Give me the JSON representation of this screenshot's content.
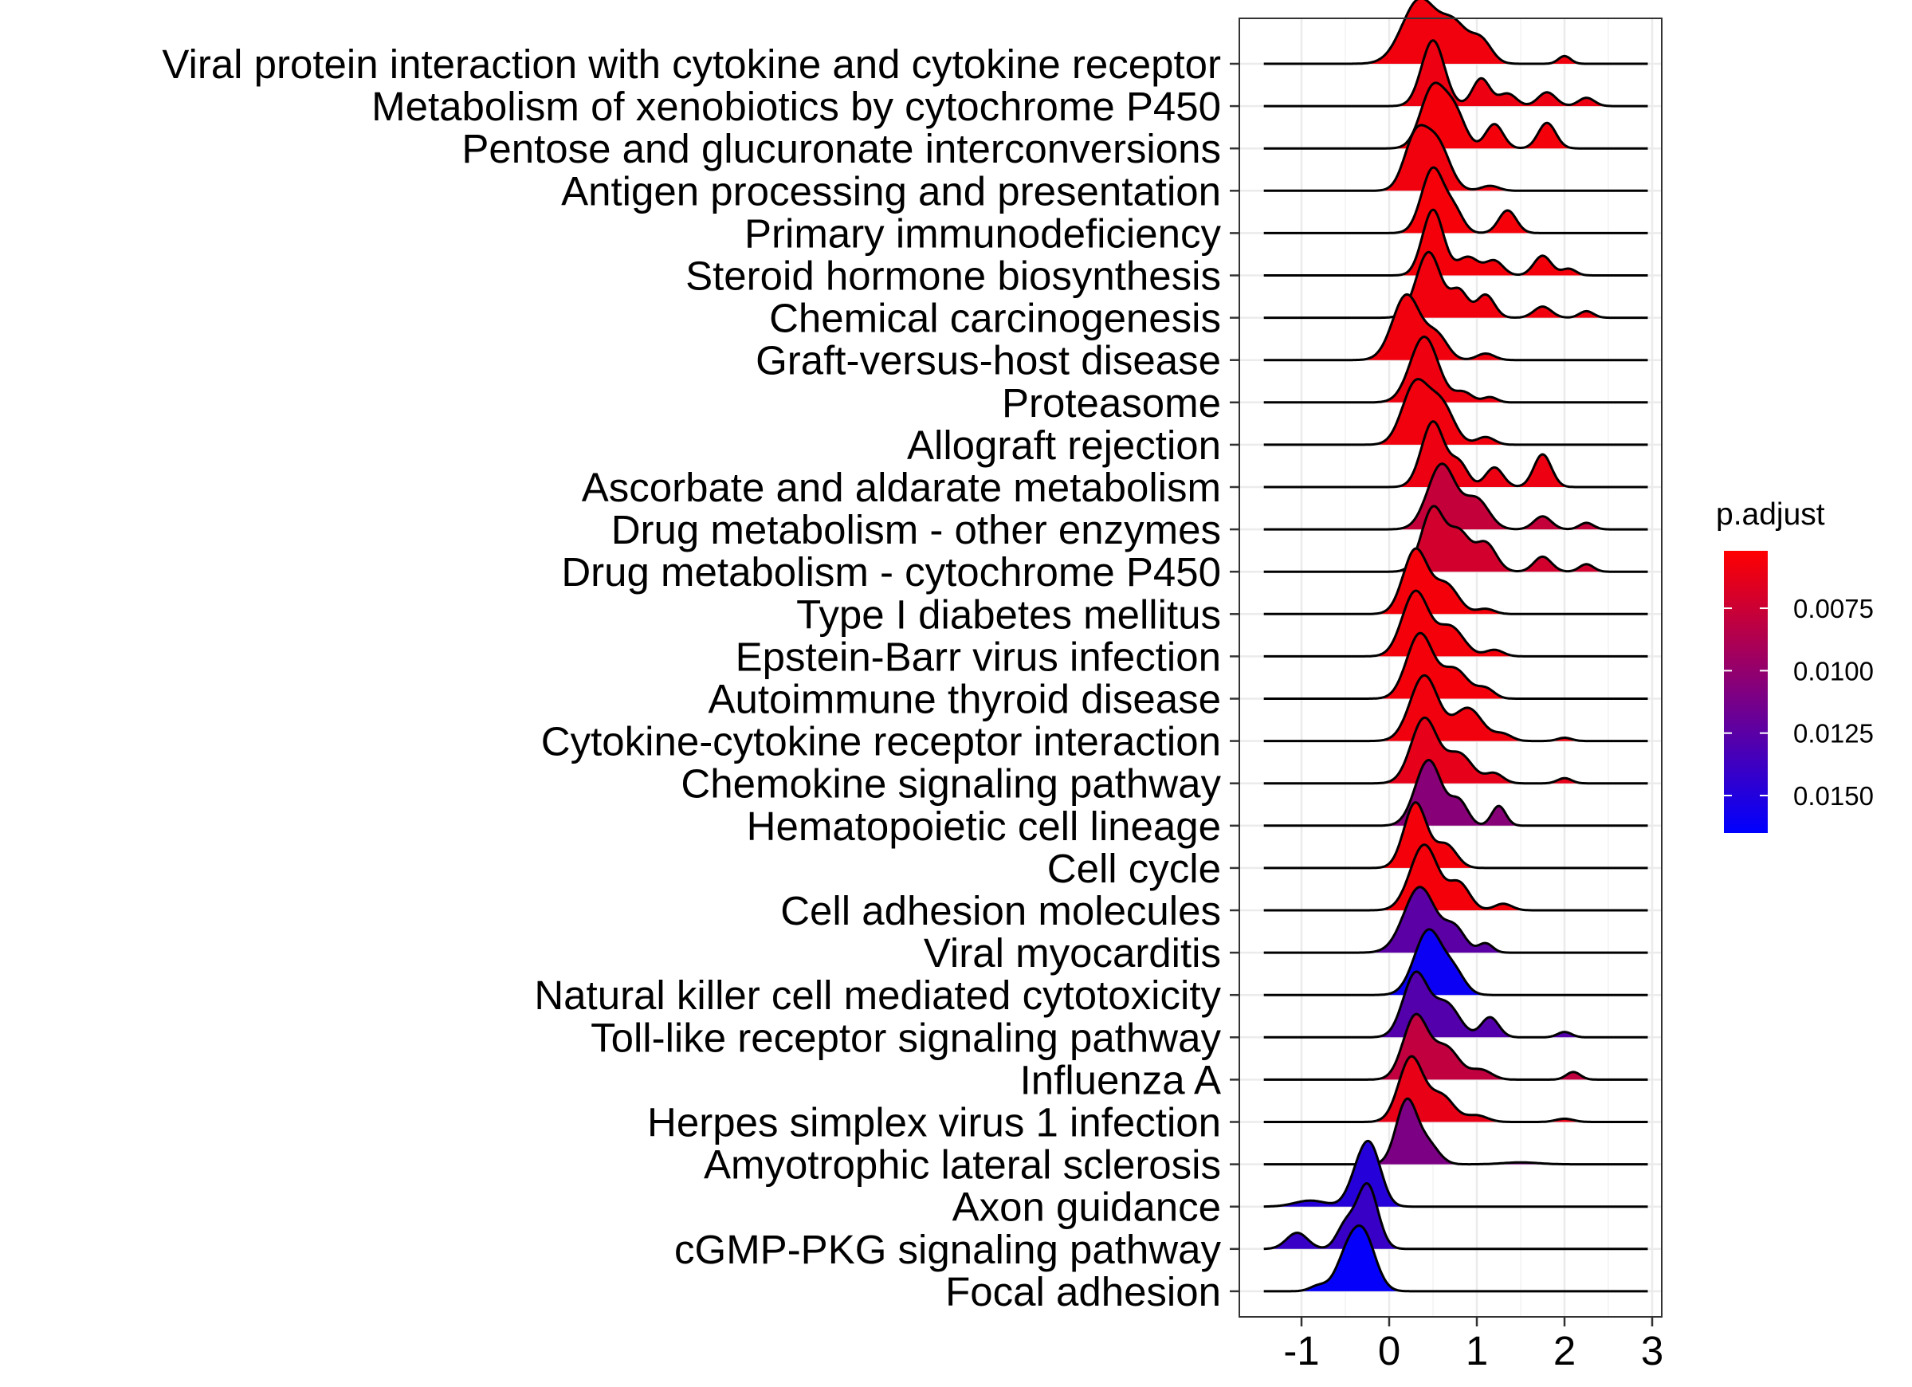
{
  "chart_data": {
    "type": "ridgeline",
    "title": "",
    "xlabel": "",
    "ylabel": "",
    "xlim": [
      -1.5,
      3.0
    ],
    "x_ticks": [
      "-1",
      "0",
      "1",
      "2",
      "3"
    ],
    "x_tick_values": [
      -1,
      0,
      1,
      2,
      3
    ],
    "grid": true,
    "legend": {
      "title": "p.adjust",
      "placement": "right",
      "range": [
        0.0052,
        0.0165
      ],
      "ticks": [
        "0.0075",
        "0.0100",
        "0.0125",
        "0.0150"
      ],
      "tick_values": [
        0.0075,
        0.01,
        0.0125,
        0.015
      ],
      "low_color": "#ff0000",
      "high_color": "#0000ff"
    },
    "series": [
      {
        "name": "Viral protein interaction with cytokine and cytokine receptor",
        "p_adjust": 0.0058,
        "peaks": [
          [
            0.35,
            0.2,
            1.0
          ],
          [
            0.75,
            0.15,
            0.55
          ],
          [
            1.05,
            0.12,
            0.35
          ],
          [
            2.0,
            0.07,
            0.12
          ]
        ]
      },
      {
        "name": "Metabolism of xenobiotics by cytochrome P450",
        "p_adjust": 0.006,
        "peaks": [
          [
            0.5,
            0.13,
            0.95
          ],
          [
            1.05,
            0.1,
            0.4
          ],
          [
            1.35,
            0.1,
            0.18
          ],
          [
            1.8,
            0.1,
            0.2
          ],
          [
            2.25,
            0.09,
            0.12
          ]
        ]
      },
      {
        "name": "Pentose and glucuronate interconversions",
        "p_adjust": 0.0057,
        "peaks": [
          [
            0.5,
            0.14,
            1.0
          ],
          [
            0.75,
            0.12,
            0.55
          ],
          [
            1.2,
            0.1,
            0.4
          ],
          [
            1.8,
            0.1,
            0.42
          ]
        ]
      },
      {
        "name": "Antigen processing and presentation",
        "p_adjust": 0.0058,
        "peaks": [
          [
            0.3,
            0.13,
            0.85
          ],
          [
            0.55,
            0.14,
            0.75
          ],
          [
            1.15,
            0.1,
            0.08
          ]
        ]
      },
      {
        "name": "Primary immunodeficiency",
        "p_adjust": 0.0056,
        "peaks": [
          [
            0.5,
            0.13,
            1.0
          ],
          [
            0.75,
            0.1,
            0.3
          ],
          [
            1.35,
            0.1,
            0.35
          ]
        ]
      },
      {
        "name": "Steroid hormone biosynthesis",
        "p_adjust": 0.0057,
        "peaks": [
          [
            0.5,
            0.12,
            1.0
          ],
          [
            0.9,
            0.12,
            0.28
          ],
          [
            1.2,
            0.1,
            0.22
          ],
          [
            1.75,
            0.1,
            0.3
          ],
          [
            2.05,
            0.08,
            0.1
          ]
        ]
      },
      {
        "name": "Chemical carcinogenesis",
        "p_adjust": 0.0058,
        "peaks": [
          [
            0.45,
            0.14,
            1.0
          ],
          [
            0.8,
            0.1,
            0.4
          ],
          [
            1.1,
            0.1,
            0.35
          ],
          [
            1.75,
            0.1,
            0.17
          ],
          [
            2.25,
            0.08,
            0.1
          ]
        ]
      },
      {
        "name": "Graft-versus-host disease",
        "p_adjust": 0.0058,
        "peaks": [
          [
            0.2,
            0.16,
            1.0
          ],
          [
            0.55,
            0.12,
            0.35
          ],
          [
            1.1,
            0.1,
            0.1
          ]
        ]
      },
      {
        "name": "Proteasome",
        "p_adjust": 0.0059,
        "peaks": [
          [
            0.4,
            0.16,
            1.0
          ],
          [
            0.85,
            0.1,
            0.15
          ],
          [
            1.15,
            0.08,
            0.08
          ]
        ]
      },
      {
        "name": "Allograft rejection",
        "p_adjust": 0.0058,
        "peaks": [
          [
            0.3,
            0.15,
            0.95
          ],
          [
            0.6,
            0.14,
            0.6
          ],
          [
            1.1,
            0.1,
            0.12
          ]
        ]
      },
      {
        "name": "Ascorbate and aldarate metabolism",
        "p_adjust": 0.006,
        "peaks": [
          [
            0.5,
            0.13,
            1.0
          ],
          [
            0.8,
            0.1,
            0.35
          ],
          [
            1.2,
            0.1,
            0.3
          ],
          [
            1.75,
            0.1,
            0.5
          ]
        ]
      },
      {
        "name": "Drug metabolism - other enzymes",
        "p_adjust": 0.0078,
        "peaks": [
          [
            0.6,
            0.16,
            1.0
          ],
          [
            1.0,
            0.14,
            0.45
          ],
          [
            1.75,
            0.1,
            0.2
          ],
          [
            2.25,
            0.08,
            0.1
          ]
        ]
      },
      {
        "name": "Drug metabolism - cytochrome P450",
        "p_adjust": 0.0072,
        "peaks": [
          [
            0.5,
            0.13,
            0.85
          ],
          [
            0.8,
            0.12,
            0.5
          ],
          [
            1.1,
            0.12,
            0.38
          ],
          [
            1.75,
            0.1,
            0.2
          ],
          [
            2.25,
            0.08,
            0.1
          ]
        ]
      },
      {
        "name": "Type I diabetes mellitus",
        "p_adjust": 0.0057,
        "peaks": [
          [
            0.3,
            0.14,
            1.0
          ],
          [
            0.65,
            0.14,
            0.45
          ],
          [
            1.1,
            0.1,
            0.08
          ]
        ]
      },
      {
        "name": "Epstein-Barr virus infection",
        "p_adjust": 0.0057,
        "peaks": [
          [
            0.3,
            0.15,
            1.0
          ],
          [
            0.7,
            0.15,
            0.45
          ],
          [
            1.2,
            0.1,
            0.1
          ]
        ]
      },
      {
        "name": "Autoimmune thyroid disease",
        "p_adjust": 0.0057,
        "peaks": [
          [
            0.35,
            0.15,
            1.0
          ],
          [
            0.75,
            0.15,
            0.45
          ],
          [
            1.1,
            0.1,
            0.15
          ]
        ]
      },
      {
        "name": "Cytokine-cytokine receptor interaction",
        "p_adjust": 0.0058,
        "peaks": [
          [
            0.4,
            0.16,
            1.0
          ],
          [
            0.9,
            0.16,
            0.5
          ],
          [
            1.3,
            0.1,
            0.1
          ],
          [
            2.0,
            0.08,
            0.05
          ]
        ]
      },
      {
        "name": "Chemokine signaling pathway",
        "p_adjust": 0.0063,
        "peaks": [
          [
            0.4,
            0.15,
            1.0
          ],
          [
            0.8,
            0.15,
            0.45
          ],
          [
            1.2,
            0.1,
            0.15
          ],
          [
            2.0,
            0.08,
            0.08
          ]
        ]
      },
      {
        "name": "Hematopoietic cell lineage",
        "p_adjust": 0.0105,
        "peaks": [
          [
            0.45,
            0.15,
            1.0
          ],
          [
            0.8,
            0.1,
            0.35
          ],
          [
            1.25,
            0.08,
            0.3
          ]
        ]
      },
      {
        "name": "Cell cycle",
        "p_adjust": 0.0057,
        "peaks": [
          [
            0.3,
            0.13,
            1.0
          ],
          [
            0.65,
            0.12,
            0.35
          ]
        ]
      },
      {
        "name": "Cell adhesion molecules",
        "p_adjust": 0.0057,
        "peaks": [
          [
            0.4,
            0.16,
            1.0
          ],
          [
            0.8,
            0.12,
            0.4
          ],
          [
            1.3,
            0.1,
            0.1
          ]
        ]
      },
      {
        "name": "Viral myocarditis",
        "p_adjust": 0.0125,
        "peaks": [
          [
            0.35,
            0.18,
            0.85
          ],
          [
            0.75,
            0.12,
            0.3
          ],
          [
            1.1,
            0.08,
            0.12
          ]
        ]
      },
      {
        "name": "Natural killer cell mediated cytotoxicity",
        "p_adjust": 0.016,
        "peaks": [
          [
            0.45,
            0.16,
            1.0
          ],
          [
            0.75,
            0.12,
            0.3
          ]
        ]
      },
      {
        "name": "Toll-like receptor signaling pathway",
        "p_adjust": 0.0128,
        "peaks": [
          [
            0.3,
            0.14,
            0.95
          ],
          [
            0.65,
            0.15,
            0.5
          ],
          [
            1.15,
            0.1,
            0.3
          ],
          [
            2.0,
            0.08,
            0.08
          ]
        ]
      },
      {
        "name": "Influenza A",
        "p_adjust": 0.008,
        "peaks": [
          [
            0.3,
            0.14,
            1.0
          ],
          [
            0.65,
            0.15,
            0.5
          ],
          [
            1.05,
            0.12,
            0.15
          ],
          [
            2.1,
            0.08,
            0.12
          ]
        ]
      },
      {
        "name": "Herpes simplex virus 1 infection",
        "p_adjust": 0.0062,
        "peaks": [
          [
            0.25,
            0.14,
            1.0
          ],
          [
            0.6,
            0.14,
            0.4
          ],
          [
            1.0,
            0.12,
            0.1
          ],
          [
            2.0,
            0.1,
            0.05
          ]
        ]
      },
      {
        "name": "Amyotrophic lateral sclerosis",
        "p_adjust": 0.011,
        "peaks": [
          [
            0.2,
            0.12,
            1.0
          ],
          [
            0.45,
            0.12,
            0.3
          ],
          [
            1.5,
            0.2,
            0.03
          ]
        ]
      },
      {
        "name": "Axon guidance",
        "p_adjust": 0.0148,
        "peaks": [
          [
            -0.2,
            0.12,
            1.0
          ],
          [
            -0.35,
            0.12,
            0.55
          ],
          [
            -0.9,
            0.18,
            0.12
          ]
        ]
      },
      {
        "name": "cGMP-PKG signaling pathway",
        "p_adjust": 0.014,
        "peaks": [
          [
            -0.25,
            0.12,
            1.0
          ],
          [
            -0.5,
            0.1,
            0.35
          ],
          [
            -1.05,
            0.12,
            0.25
          ]
        ]
      },
      {
        "name": "Focal adhesion",
        "p_adjust": 0.0163,
        "peaks": [
          [
            -0.3,
            0.14,
            1.0
          ],
          [
            -0.5,
            0.12,
            0.45
          ],
          [
            -0.8,
            0.1,
            0.1
          ]
        ]
      }
    ]
  }
}
